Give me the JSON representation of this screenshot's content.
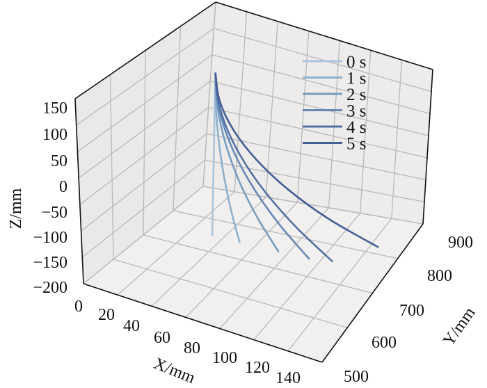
{
  "chart_data": {
    "type": "line3d",
    "xlabel": "X/mm",
    "ylabel": "Y/mm",
    "zlabel": "Z/mm",
    "xlim": [
      0,
      140
    ],
    "ylim": [
      500,
      900
    ],
    "zlim": [
      -200,
      150
    ],
    "x_ticks": [
      "0",
      "20",
      "40",
      "60",
      "80",
      "100",
      "120",
      "140"
    ],
    "y_ticks": [
      "500",
      "600",
      "700",
      "800",
      "900"
    ],
    "z_ticks": [
      "150",
      "100",
      "50",
      "0",
      "−50",
      "−100",
      "−150",
      "−200"
    ],
    "grid": true,
    "legend_position": "top-right",
    "series": [
      {
        "name": "0 s",
        "color": "#a9c4dc",
        "points": [
          [
            35,
            740,
            120
          ],
          [
            35,
            740,
            67.5
          ],
          [
            35,
            740,
            15
          ],
          [
            35,
            740,
            -37.5
          ],
          [
            35,
            740,
            -90
          ],
          [
            35,
            740,
            -142.5
          ],
          [
            35,
            740,
            -195
          ]
        ]
      },
      {
        "name": "1 s",
        "color": "#8fb0cc",
        "points": [
          [
            35,
            740,
            120
          ],
          [
            35.5,
            740,
            67.5
          ],
          [
            36.9,
            740,
            15
          ],
          [
            39.3,
            740,
            -37.5
          ],
          [
            42.6,
            740,
            -90
          ],
          [
            46.8,
            740,
            -142.5
          ],
          [
            52,
            740,
            -195
          ]
        ]
      },
      {
        "name": "2 s",
        "color": "#779dc0",
        "points": [
          [
            35,
            740,
            120
          ],
          [
            36.1,
            740,
            67.5
          ],
          [
            39.6,
            740,
            15
          ],
          [
            45.3,
            740,
            -37.5
          ],
          [
            53.2,
            740,
            -90
          ],
          [
            63.5,
            740,
            -142.5
          ],
          [
            76,
            740,
            -195
          ]
        ]
      },
      {
        "name": "3 s",
        "color": "#6688b5",
        "points": [
          [
            35,
            740,
            120
          ],
          [
            36.7,
            740,
            67.5
          ],
          [
            41.7,
            740,
            15
          ],
          [
            50,
            740,
            -37.5
          ],
          [
            61.7,
            740,
            -90
          ],
          [
            76.6,
            740,
            -142.5
          ],
          [
            95,
            740,
            -195
          ]
        ]
      },
      {
        "name": "4 s",
        "color": "#5372a3",
        "points": [
          [
            35,
            740,
            120
          ],
          [
            37,
            740.2,
            67.5
          ],
          [
            43.1,
            740.9,
            15
          ],
          [
            53.3,
            742,
            -37.5
          ],
          [
            67.4,
            743.6,
            -90
          ],
          [
            85.7,
            745.6,
            -142.5
          ],
          [
            108,
            748,
            -195
          ]
        ]
      },
      {
        "name": "5 s",
        "color": "#415e96",
        "points": [
          [
            35,
            740,
            120
          ],
          [
            37.5,
            742,
            67.5
          ],
          [
            45.1,
            748,
            15
          ],
          [
            57.8,
            758,
            -37.5
          ],
          [
            75.4,
            772,
            -90
          ],
          [
            98.2,
            790,
            -142.5
          ],
          [
            126,
            812,
            -195
          ]
        ]
      }
    ]
  }
}
